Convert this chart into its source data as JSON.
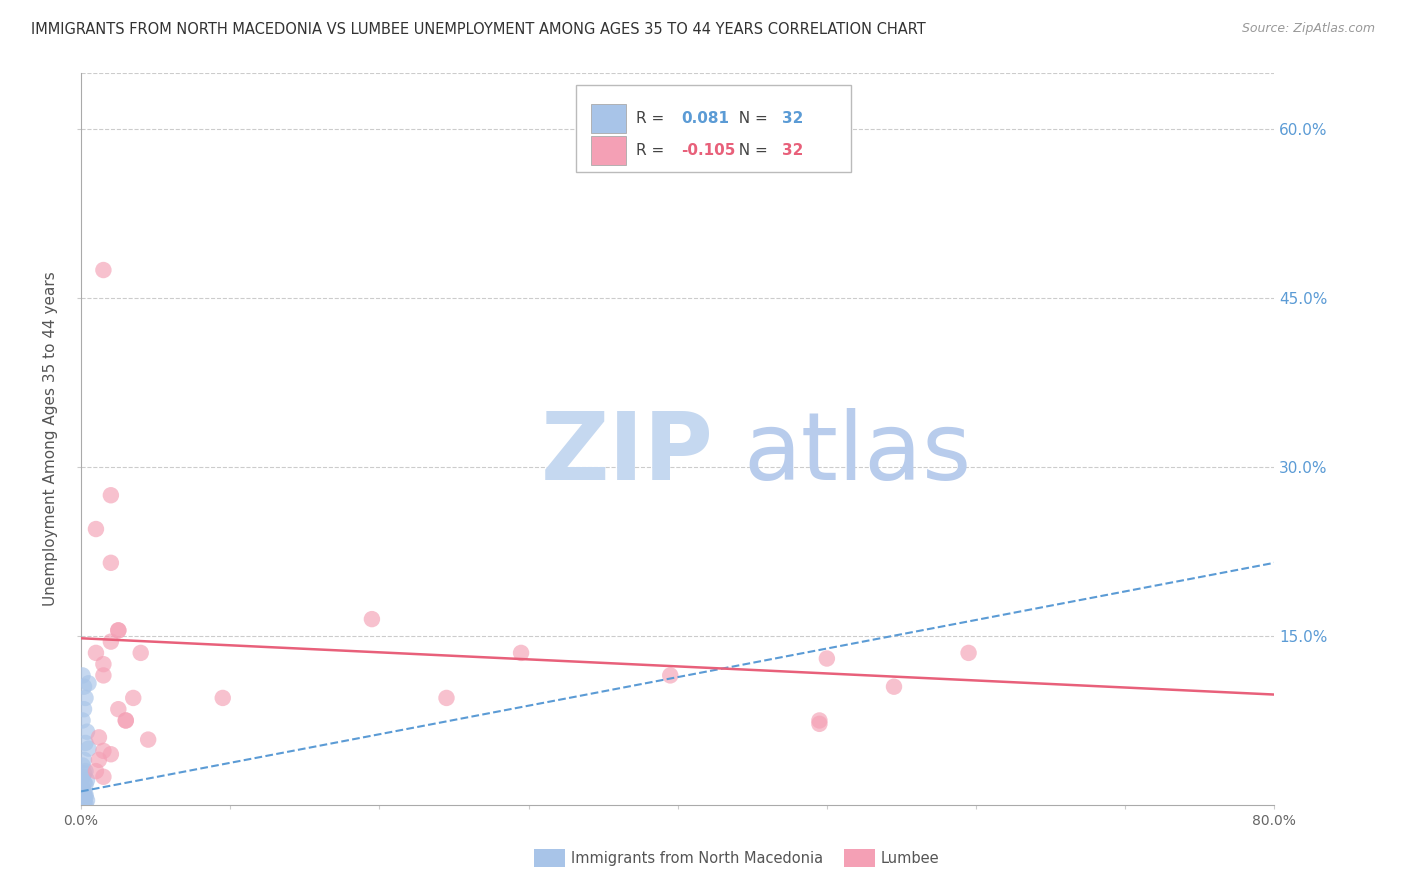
{
  "title": "IMMIGRANTS FROM NORTH MACEDONIA VS LUMBEE UNEMPLOYMENT AMONG AGES 35 TO 44 YEARS CORRELATION CHART",
  "source": "Source: ZipAtlas.com",
  "ylabel": "Unemployment Among Ages 35 to 44 years",
  "ytick_values": [
    0.15,
    0.3,
    0.45,
    0.6
  ],
  "ytick_labels": [
    "15.0%",
    "30.0%",
    "45.0%",
    "60.0%"
  ],
  "xlim": [
    0.0,
    0.8
  ],
  "ylim": [
    0.0,
    0.65
  ],
  "legend1_R": "0.081",
  "legend1_N": "32",
  "legend2_R": "-0.105",
  "legend2_N": "32",
  "color_blue": "#a8c4e8",
  "color_pink": "#f4a0b5",
  "color_blue_dark": "#5b9bd5",
  "color_pink_dark": "#e8607a",
  "watermark_zip": "ZIP",
  "watermark_atlas": "atlas",
  "series1_label": "Immigrants from North Macedonia",
  "series2_label": "Lumbee",
  "blue_scatter_x": [
    0.001,
    0.002,
    0.003,
    0.002,
    0.001,
    0.004,
    0.003,
    0.005,
    0.002,
    0.001,
    0.003,
    0.002,
    0.001,
    0.004,
    0.002,
    0.003,
    0.001,
    0.002,
    0.005,
    0.001,
    0.002,
    0.003,
    0.001,
    0.002,
    0.003,
    0.001,
    0.002,
    0.004,
    0.001,
    0.002,
    0.003,
    0.002
  ],
  "blue_scatter_y": [
    0.115,
    0.105,
    0.095,
    0.085,
    0.075,
    0.065,
    0.055,
    0.05,
    0.04,
    0.035,
    0.03,
    0.028,
    0.025,
    0.022,
    0.02,
    0.018,
    0.015,
    0.012,
    0.108,
    0.01,
    0.01,
    0.009,
    0.008,
    0.007,
    0.007,
    0.006,
    0.005,
    0.004,
    0.003,
    0.002,
    0.001,
    0.001
  ],
  "pink_scatter_x": [
    0.01,
    0.015,
    0.02,
    0.025,
    0.01,
    0.015,
    0.02,
    0.035,
    0.03,
    0.015,
    0.012,
    0.025,
    0.045,
    0.04,
    0.095,
    0.195,
    0.295,
    0.495,
    0.595,
    0.545,
    0.495,
    0.395,
    0.245,
    0.015,
    0.02,
    0.025,
    0.03,
    0.02,
    0.01,
    0.015,
    0.012,
    0.5
  ],
  "pink_scatter_y": [
    0.135,
    0.115,
    0.215,
    0.155,
    0.245,
    0.125,
    0.145,
    0.095,
    0.075,
    0.048,
    0.04,
    0.085,
    0.058,
    0.135,
    0.095,
    0.165,
    0.135,
    0.075,
    0.135,
    0.105,
    0.072,
    0.115,
    0.095,
    0.475,
    0.275,
    0.155,
    0.075,
    0.045,
    0.03,
    0.025,
    0.06,
    0.13
  ],
  "blue_trend_x0": 0.0,
  "blue_trend_x1": 0.8,
  "blue_trend_y0": 0.012,
  "blue_trend_y1": 0.215,
  "pink_trend_x0": 0.0,
  "pink_trend_x1": 0.8,
  "pink_trend_y0": 0.148,
  "pink_trend_y1": 0.098,
  "grid_color": "#cccccc",
  "title_color": "#333333",
  "watermark_color_zip": "#c5d8f0",
  "watermark_color_atlas": "#b8ccec"
}
